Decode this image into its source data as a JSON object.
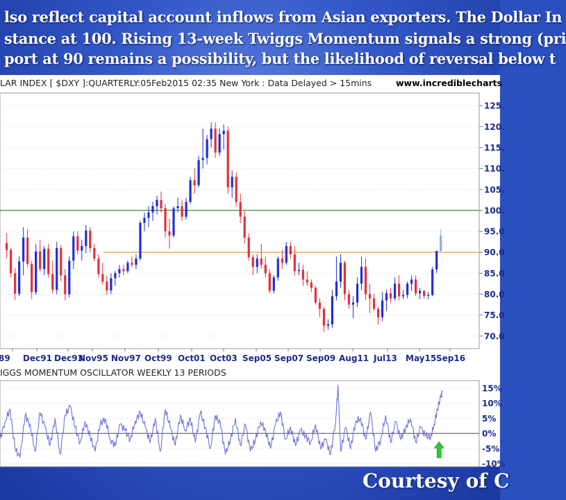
{
  "caption": {
    "line1": "lso reflect capital account inflows from Asian exporters. The Dollar In",
    "line2": "stance at 100. Rising 13-week Twiggs Momentum signals a strong (pri",
    "line3": "port at 90 remains a possibility, but the likelihood of reversal below t"
  },
  "courtesy_text": "Courtesy of C",
  "chart_data": [
    {
      "type": "candlestick",
      "title": "LAR INDEX [ $DXY ]:QUARTERLY:05Feb2015 02:35 New York : Data Delayed > 15mins",
      "source": "www.incrediblecharts",
      "x_tick_labels": [
        "89",
        "Dec91",
        "Dec93",
        "Nov95",
        "Nov97",
        "Oct99",
        "Oct01",
        "Oct03",
        "Sep05",
        "Sep07",
        "Sep09",
        "Aug11",
        "Jul13",
        "May15",
        "Sep16"
      ],
      "y_tick_labels": [
        "125.",
        "120.",
        "115.",
        "110.",
        "105.",
        "100.",
        "95.0",
        "90.0",
        "85.0",
        "80.0",
        "75.0",
        "70.0"
      ],
      "y_ticks": [
        125,
        120,
        115,
        110,
        105,
        100,
        95,
        90,
        85,
        80,
        75,
        70
      ],
      "ylim": [
        67,
        128
      ],
      "xlim": [
        1988.6,
        2017.3
      ],
      "reference_lines": [
        {
          "value": 100,
          "color": "#1a8a1a",
          "from_year": 1988.6
        },
        {
          "value": 90,
          "color": "#f0a040",
          "from_year": 1994.8
        }
      ],
      "up_color": "#1f2ed0",
      "down_color": "#e0303a",
      "last_bar_color": "#9aa8e8",
      "candles": [
        [
          1989.0,
          92.2,
          94.6,
          88.5,
          90.5
        ],
        [
          1989.25,
          90.5,
          91.0,
          84.0,
          85.0
        ],
        [
          1989.5,
          85.0,
          86.3,
          78.6,
          80.1
        ],
        [
          1989.75,
          80.1,
          89.0,
          79.5,
          87.8
        ],
        [
          1990.0,
          87.8,
          96.0,
          84.5,
          93.5
        ],
        [
          1990.25,
          93.5,
          95.5,
          86.5,
          87.2
        ],
        [
          1990.5,
          87.2,
          88.0,
          78.8,
          80.5
        ],
        [
          1990.75,
          80.5,
          92.0,
          79.8,
          90.2
        ],
        [
          1991.0,
          90.2,
          93.0,
          85.5,
          86.0
        ],
        [
          1991.25,
          86.0,
          91.5,
          84.5,
          90.8
        ],
        [
          1991.5,
          90.8,
          92.0,
          84.0,
          84.8
        ],
        [
          1991.75,
          84.8,
          88.0,
          80.2,
          81.0
        ],
        [
          1992.0,
          81.0,
          92.5,
          80.0,
          91.0
        ],
        [
          1992.25,
          91.0,
          91.8,
          83.0,
          84.5
        ],
        [
          1992.5,
          84.5,
          86.0,
          78.5,
          80.0
        ],
        [
          1992.75,
          80.0,
          89.0,
          79.2,
          88.0
        ],
        [
          1993.0,
          88.0,
          95.0,
          86.0,
          93.8
        ],
        [
          1993.25,
          93.8,
          95.0,
          89.5,
          90.4
        ],
        [
          1993.5,
          90.4,
          93.0,
          88.0,
          91.5
        ],
        [
          1993.75,
          91.5,
          96.5,
          89.8,
          95.2
        ],
        [
          1994.0,
          95.2,
          96.0,
          90.0,
          91.0
        ],
        [
          1994.25,
          91.0,
          92.0,
          87.8,
          88.5
        ],
        [
          1994.5,
          88.5,
          89.5,
          84.0,
          84.8
        ],
        [
          1994.75,
          84.8,
          87.5,
          82.2,
          83.0
        ],
        [
          1995.0,
          83.0,
          84.5,
          79.8,
          80.9
        ],
        [
          1995.25,
          80.9,
          85.0,
          80.0,
          83.8
        ],
        [
          1995.5,
          83.8,
          85.5,
          82.0,
          85.0
        ],
        [
          1995.75,
          85.0,
          87.0,
          84.0,
          86.0
        ],
        [
          1996.0,
          86.0,
          87.0,
          84.5,
          85.5
        ],
        [
          1996.25,
          85.5,
          88.0,
          85.0,
          87.5
        ],
        [
          1996.5,
          87.5,
          89.0,
          86.5,
          87.0
        ],
        [
          1996.75,
          87.0,
          89.5,
          86.0,
          88.5
        ],
        [
          1997.0,
          88.5,
          97.5,
          88.0,
          97.0
        ],
        [
          1997.25,
          97.0,
          99.5,
          95.0,
          98.2
        ],
        [
          1997.5,
          98.2,
          101.0,
          96.0,
          99.5
        ],
        [
          1997.75,
          99.5,
          102.0,
          97.5,
          101.0
        ],
        [
          1998.0,
          101.0,
          103.5,
          99.0,
          102.5
        ],
        [
          1998.25,
          102.5,
          104.5,
          99.5,
          100.5
        ],
        [
          1998.5,
          100.5,
          101.5,
          93.5,
          95.0
        ],
        [
          1998.75,
          95.0,
          98.0,
          90.8,
          94.0
        ],
        [
          1999.0,
          94.0,
          101.0,
          93.5,
          100.5
        ],
        [
          1999.25,
          100.5,
          103.0,
          99.5,
          101.0
        ],
        [
          1999.5,
          101.0,
          102.5,
          97.5,
          98.5
        ],
        [
          1999.75,
          98.5,
          103.0,
          97.8,
          102.0
        ],
        [
          2000.0,
          102.0,
          108.0,
          101.5,
          107.2
        ],
        [
          2000.25,
          107.2,
          110.0,
          104.0,
          106.0
        ],
        [
          2000.5,
          106.0,
          113.0,
          105.5,
          112.0
        ],
        [
          2000.75,
          112.0,
          119.5,
          110.0,
          112.5
        ],
        [
          2001.0,
          112.5,
          118.0,
          111.0,
          117.0
        ],
        [
          2001.25,
          117.0,
          121.0,
          115.0,
          119.5
        ],
        [
          2001.5,
          119.5,
          121.0,
          112.5,
          113.8
        ],
        [
          2001.75,
          113.8,
          119.5,
          113.0,
          118.2
        ],
        [
          2002.0,
          118.2,
          120.5,
          114.5,
          119.0
        ],
        [
          2002.25,
          119.0,
          120.0,
          104.0,
          105.5
        ],
        [
          2002.5,
          105.5,
          109.5,
          103.0,
          108.0
        ],
        [
          2002.75,
          108.0,
          109.0,
          101.0,
          102.0
        ],
        [
          2003.0,
          102.0,
          104.0,
          97.0,
          98.5
        ],
        [
          2003.25,
          98.5,
          100.0,
          92.0,
          93.5
        ],
        [
          2003.5,
          93.5,
          94.5,
          88.0,
          88.8
        ],
        [
          2003.75,
          88.8,
          89.5,
          84.5,
          86.5
        ],
        [
          2004.0,
          86.5,
          89.5,
          85.0,
          88.5
        ],
        [
          2004.25,
          88.5,
          92.0,
          86.0,
          87.0
        ],
        [
          2004.5,
          87.0,
          89.0,
          84.0,
          85.0
        ],
        [
          2004.75,
          85.0,
          86.0,
          80.2,
          80.8
        ],
        [
          2005.0,
          80.8,
          84.5,
          80.2,
          84.0
        ],
        [
          2005.25,
          84.0,
          89.0,
          83.2,
          88.5
        ],
        [
          2005.5,
          88.5,
          90.5,
          86.0,
          87.5
        ],
        [
          2005.75,
          87.5,
          92.5,
          87.0,
          91.5
        ],
        [
          2006.0,
          91.5,
          92.5,
          88.5,
          89.5
        ],
        [
          2006.25,
          89.5,
          91.5,
          84.5,
          85.5
        ],
        [
          2006.5,
          85.5,
          87.5,
          84.5,
          85.8
        ],
        [
          2006.75,
          85.8,
          87.0,
          82.0,
          83.5
        ],
        [
          2007.0,
          83.5,
          85.5,
          82.0,
          82.8
        ],
        [
          2007.25,
          82.8,
          83.5,
          80.5,
          81.5
        ],
        [
          2007.5,
          81.5,
          82.0,
          77.5,
          78.0
        ],
        [
          2007.75,
          78.0,
          79.0,
          74.5,
          76.5
        ],
        [
          2008.0,
          76.5,
          77.0,
          71.0,
          72.5
        ],
        [
          2008.25,
          72.5,
          74.0,
          71.5,
          72.8
        ],
        [
          2008.5,
          72.8,
          81.0,
          72.0,
          79.5
        ],
        [
          2008.75,
          79.5,
          89.0,
          78.5,
          83.0
        ],
        [
          2009.0,
          83.0,
          89.5,
          81.5,
          87.5
        ],
        [
          2009.25,
          87.5,
          88.0,
          78.5,
          80.0
        ],
        [
          2009.5,
          80.0,
          81.0,
          76.5,
          77.5
        ],
        [
          2009.75,
          77.5,
          79.5,
          74.3,
          78.0
        ],
        [
          2010.0,
          78.0,
          84.0,
          77.0,
          82.5
        ],
        [
          2010.25,
          82.5,
          89.0,
          81.0,
          86.5
        ],
        [
          2010.5,
          86.5,
          88.5,
          78.5,
          80.0
        ],
        [
          2010.75,
          80.0,
          82.5,
          75.5,
          79.0
        ],
        [
          2011.0,
          79.0,
          80.0,
          76.0,
          76.5
        ],
        [
          2011.25,
          76.5,
          77.0,
          72.8,
          74.5
        ],
        [
          2011.5,
          74.5,
          80.5,
          73.5,
          78.5
        ],
        [
          2011.75,
          78.5,
          81.0,
          76.0,
          80.2
        ],
        [
          2012.0,
          80.2,
          81.5,
          78.0,
          79.0
        ],
        [
          2012.25,
          79.0,
          84.0,
          78.5,
          82.5
        ],
        [
          2012.5,
          82.5,
          84.5,
          78.5,
          79.5
        ],
        [
          2012.75,
          79.5,
          81.0,
          78.8,
          79.8
        ],
        [
          2013.0,
          79.8,
          83.0,
          79.0,
          82.5
        ],
        [
          2013.25,
          82.5,
          84.5,
          80.8,
          83.5
        ],
        [
          2013.5,
          83.5,
          84.5,
          79.5,
          80.2
        ],
        [
          2013.75,
          80.2,
          81.5,
          78.8,
          80.8
        ],
        [
          2014.0,
          80.8,
          81.0,
          78.9,
          79.6
        ],
        [
          2014.25,
          79.6,
          80.5,
          78.8,
          79.8
        ],
        [
          2014.5,
          79.8,
          86.5,
          79.5,
          85.9
        ],
        [
          2014.75,
          85.9,
          90.4,
          85.0,
          90.3
        ],
        [
          2015.0,
          90.3,
          95.5,
          90.0,
          94.0
        ]
      ]
    },
    {
      "type": "line",
      "title": "IGGS MOMENTUM OSCILLATOR WEEKLY 13 PERIODS",
      "y_tick_labels": [
        "15%",
        "10%",
        "5%",
        "0%",
        "-5%",
        "-10%"
      ],
      "y_ticks": [
        15,
        10,
        5,
        0,
        -5,
        -10
      ],
      "ylim": [
        -11,
        17.5
      ],
      "zero_line": 0,
      "line_color": "#6b72d8",
      "signal_arrow": {
        "year": 2014.9,
        "direction": "up",
        "color": "#22cc33"
      },
      "series": [
        {
          "x": [
            1988.6,
            1988.9,
            1989.2,
            1989.5,
            1989.8,
            1990.1,
            1990.4,
            1990.7,
            1991.0,
            1991.3,
            1991.6,
            1991.9,
            1992.2,
            1992.5,
            1992.8,
            1993.1,
            1993.4,
            1993.7,
            1994.0,
            1994.3,
            1994.6,
            1994.9,
            1995.2,
            1995.5,
            1995.8,
            1996.1,
            1996.4,
            1996.7,
            1997.0,
            1997.3,
            1997.6,
            1997.9,
            1998.2,
            1998.5,
            1998.8,
            1999.1,
            1999.4,
            1999.7,
            2000.0,
            2000.3,
            2000.6,
            2000.9,
            2001.2,
            2001.5,
            2001.8,
            2002.1,
            2002.4,
            2002.7,
            2003.0,
            2003.3,
            2003.6,
            2003.9,
            2004.2,
            2004.5,
            2004.8,
            2005.1,
            2005.4,
            2005.7,
            2006.0,
            2006.3,
            2006.6,
            2006.9,
            2007.2,
            2007.5,
            2007.8,
            2008.1,
            2008.4,
            2008.7,
            2008.85,
            2009.0,
            2009.3,
            2009.6,
            2009.9,
            2010.2,
            2010.5,
            2010.8,
            2011.1,
            2011.4,
            2011.7,
            2012.0,
            2012.3,
            2012.6,
            2012.9,
            2013.2,
            2013.5,
            2013.8,
            2014.1,
            2014.4,
            2014.6,
            2014.8,
            2015.0,
            2015.1
          ],
          "y": [
            -2,
            4,
            8,
            -5,
            -8,
            6,
            3,
            -6,
            7,
            2,
            -4,
            5,
            -7,
            6,
            9,
            2,
            -3,
            4,
            -1,
            -6,
            3,
            5,
            -2,
            -4,
            3,
            1,
            -2,
            4,
            7,
            2,
            -3,
            5,
            -6,
            8,
            2,
            -4,
            6,
            1,
            5,
            -3,
            7,
            2,
            -5,
            6,
            3,
            -7,
            -2,
            5,
            -4,
            3,
            -6,
            -2,
            4,
            1,
            -5,
            3,
            7,
            -2,
            2,
            -4,
            1,
            -1,
            -3,
            3,
            -5,
            -2,
            -7,
            4,
            16,
            -6,
            2,
            -5,
            4,
            5,
            -2,
            7,
            -6,
            -2,
            6,
            -3,
            4,
            -2,
            2,
            5,
            -3,
            2,
            -1,
            -1,
            3,
            8,
            12,
            14
          ]
        }
      ]
    }
  ]
}
